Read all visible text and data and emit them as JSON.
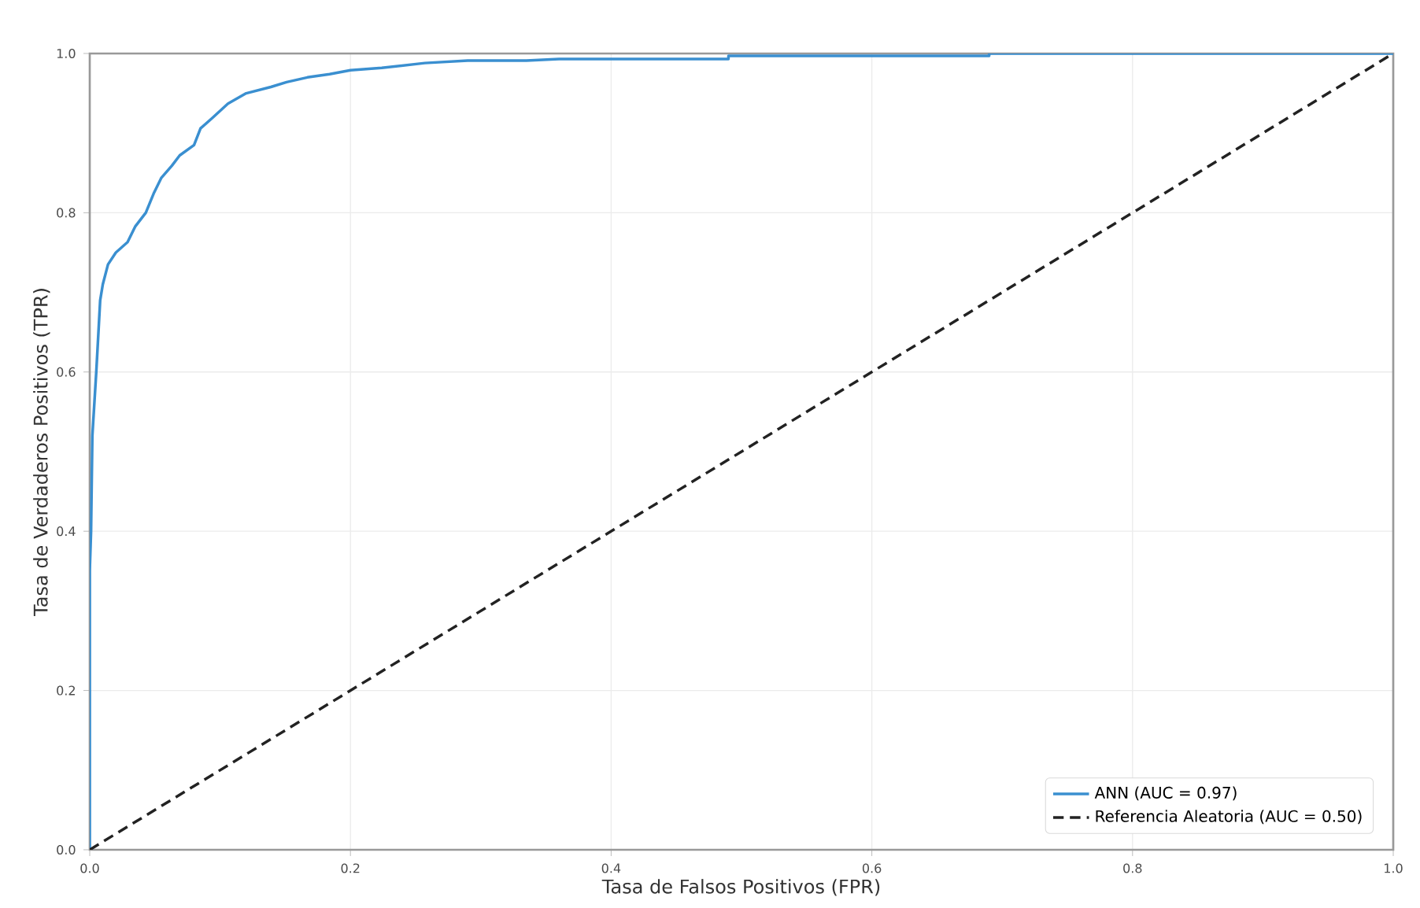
{
  "chart_data": {
    "type": "line",
    "xlabel": "Tasa de Falsos Positivos (FPR)",
    "ylabel": "Tasa de Verdaderos Positivos (TPR)",
    "xlim": [
      0,
      1
    ],
    "ylim": [
      0,
      1
    ],
    "xticks": [
      {
        "value": 0,
        "label": "0.0"
      },
      {
        "value": 0.2,
        "label": "0.2"
      },
      {
        "value": 0.4,
        "label": "0.4"
      },
      {
        "value": 0.6,
        "label": "0.6"
      },
      {
        "value": 0.8,
        "label": "0.8"
      },
      {
        "value": 1,
        "label": "1.0"
      }
    ],
    "yticks": [
      {
        "value": 0,
        "label": "0.0"
      },
      {
        "value": 0.2,
        "label": "0.2"
      },
      {
        "value": 0.4,
        "label": "0.4"
      },
      {
        "value": 0.6,
        "label": "0.6"
      },
      {
        "value": 0.8,
        "label": "0.8"
      },
      {
        "value": 1,
        "label": "1.0"
      }
    ],
    "grid": true,
    "legend": "bottom right",
    "series": [
      {
        "name": "ANN (AUC = 0.97)",
        "color": "#3a8fd0",
        "line_style": "solid",
        "x": [
          0,
          0,
          0.001,
          0.002,
          0.005,
          0.007,
          0.008,
          0.01,
          0.014,
          0.02,
          0.029,
          0.035,
          0.043,
          0.049,
          0.055,
          0.063,
          0.069,
          0.08,
          0.085,
          0.094,
          0.106,
          0.12,
          0.139,
          0.151,
          0.167,
          0.184,
          0.2,
          0.224,
          0.257,
          0.29,
          0.335,
          0.36,
          0.49,
          0.49,
          0.69,
          0.69,
          1.0
        ],
        "values": [
          0,
          0.35,
          0.4,
          0.52,
          0.6,
          0.66,
          0.69,
          0.71,
          0.735,
          0.75,
          0.763,
          0.783,
          0.8,
          0.824,
          0.844,
          0.859,
          0.872,
          0.885,
          0.906,
          0.919,
          0.937,
          0.95,
          0.958,
          0.964,
          0.97,
          0.974,
          0.979,
          0.982,
          0.988,
          0.991,
          0.991,
          0.993,
          0.993,
          0.997,
          0.997,
          1.0,
          1.0
        ]
      },
      {
        "name": "Referencia Aleatoria (AUC = 0.50)",
        "color": "#222222",
        "line_style": "dashed",
        "x": [
          0,
          1
        ],
        "values": [
          0,
          1
        ]
      }
    ]
  }
}
